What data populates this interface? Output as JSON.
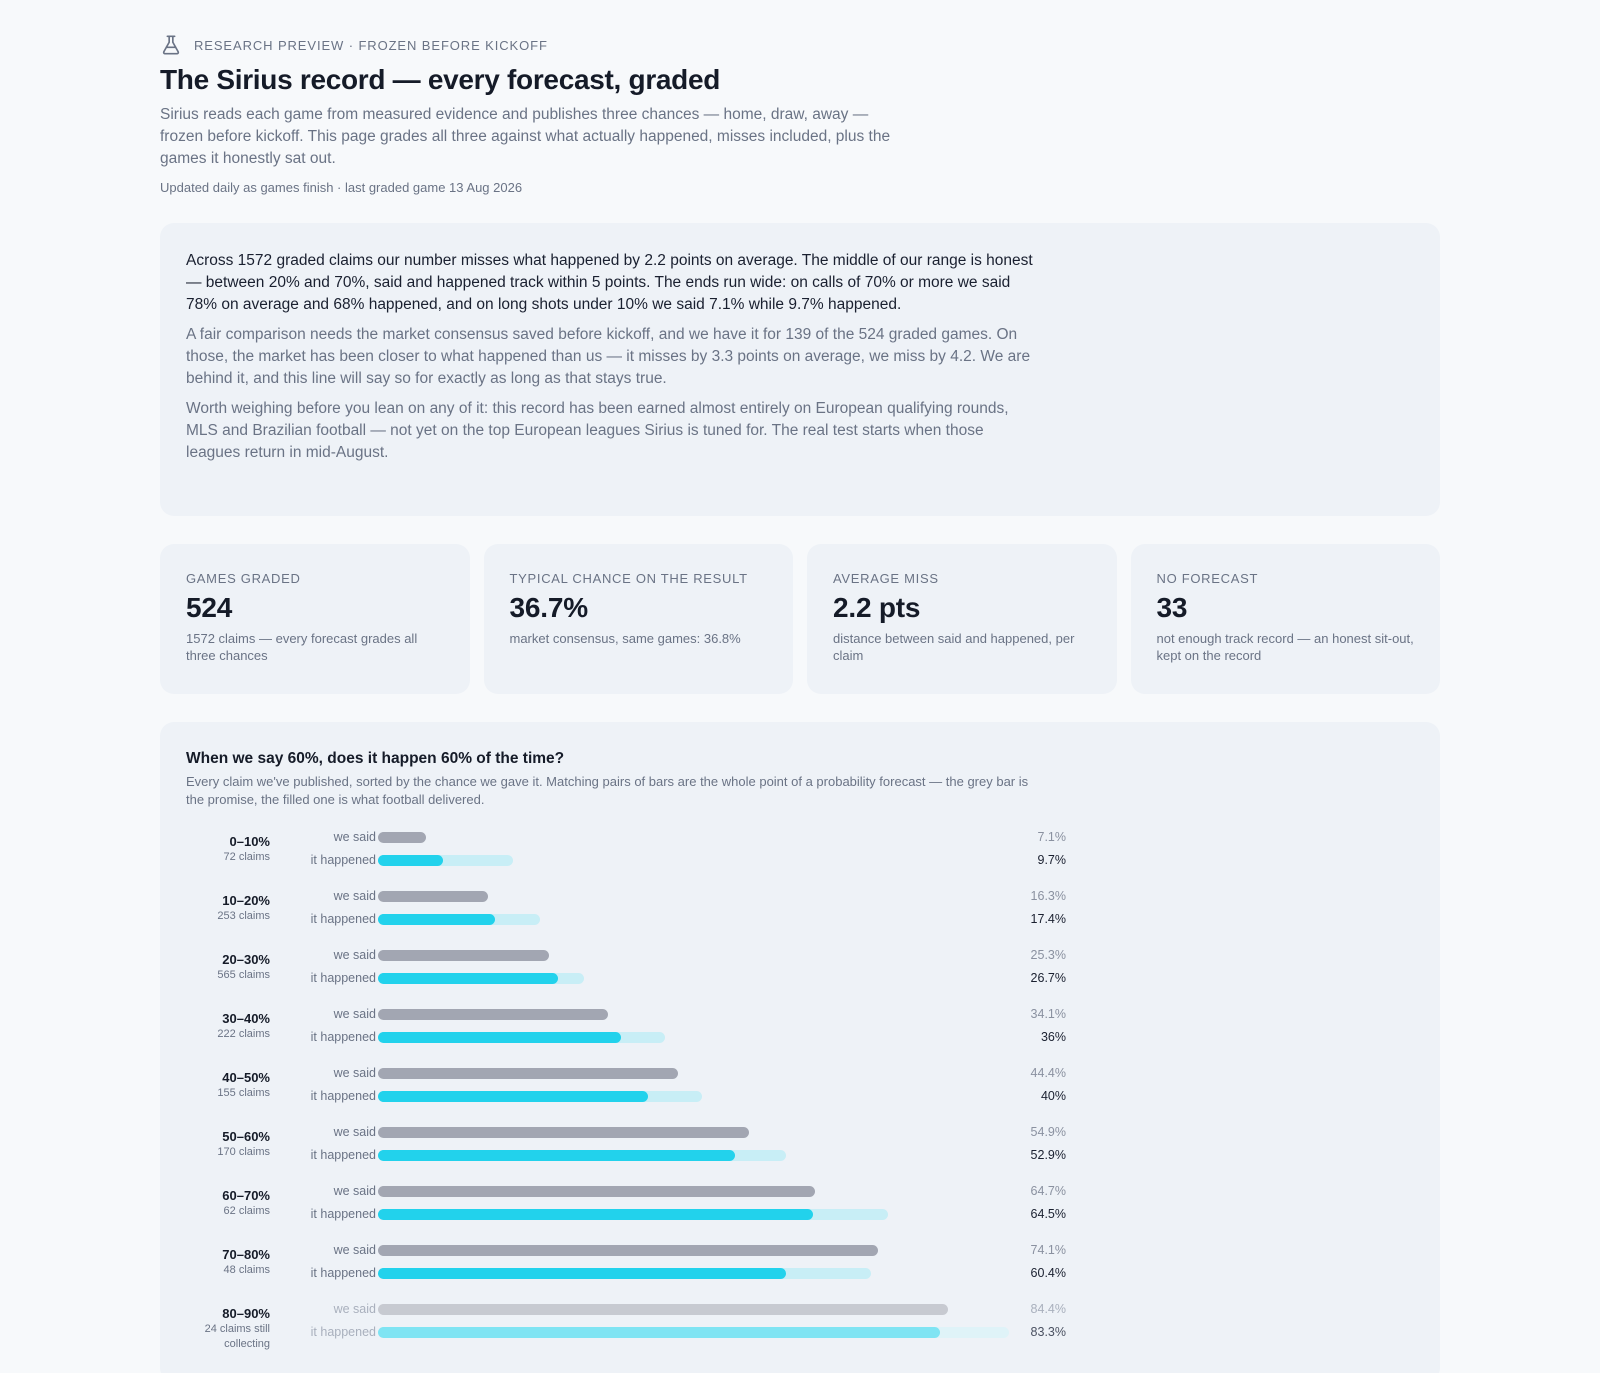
{
  "header": {
    "eyebrow": "RESEARCH PREVIEW · FROZEN BEFORE KICKOFF",
    "title": "The Sirius record — every forecast, graded",
    "lede": "Sirius reads each game from measured evidence and publishes three chances — home, draw, away — frozen before kickoff. This page grades all three against what actually happened, misses included, plus the games it honestly sat out.",
    "updated": "Updated daily as games finish · last graded game 13 Aug 2026"
  },
  "summary": {
    "p1": "Across 1572 graded claims our number misses what happened by 2.2 points on average. The middle of our range is honest — between 20% and 70%, said and happened track within 5 points. The ends run wide: on calls of 70% or more we said 78% on average and 68% happened, and on long shots under 10% we said 7.1% while 9.7% happened.",
    "p2": "A fair comparison needs the market consensus saved before kickoff, and we have it for 139 of the 524 graded games. On those, the market has been closer to what happened than us — it misses by 3.3 points on average, we miss by 4.2. We are behind it, and this line will say so for exactly as long as that stays true.",
    "p3": "Worth weighing before you lean on any of it: this record has been earned almost entirely on European qualifying rounds, MLS and Brazilian football — not yet on the top European leagues Sirius is tuned for. The real test starts when those leagues return in mid-August."
  },
  "cards": [
    {
      "label": "GAMES GRADED",
      "value": "524",
      "sub": "1572 claims — every forecast grades all three chances"
    },
    {
      "label": "TYPICAL CHANCE ON THE RESULT",
      "value": "36.7%",
      "sub": "market consensus, same games: 36.8%"
    },
    {
      "label": "AVERAGE MISS",
      "value": "2.2 pts",
      "sub": "distance between said and happened, per claim"
    },
    {
      "label": "NO FORECAST",
      "value": "33",
      "sub": "not enough track record — an honest sit-out, kept on the record"
    }
  ],
  "chart_data": {
    "type": "bar",
    "title": "When we say 60%, does it happen 60% of the time?",
    "subtitle": "Every claim we've published, sorted by the chance we gave it. Matching pairs of bars are the whole point of a probability forecast — the grey bar is the promise, the filled one is what football delivered.",
    "row_labels": {
      "said": "we said",
      "happened": "it happened"
    },
    "colors": {
      "said": "#a2a6b2",
      "happened": "#22d2ec",
      "uncertainty": "#c8eef6"
    },
    "max_value": 100,
    "bins": [
      {
        "range": "0–10%",
        "count": "72 claims",
        "said": 7.1,
        "happened": 9.7,
        "said_label": "7.1%",
        "happened_label": "9.7%",
        "upper": 20.0
      },
      {
        "range": "10–20%",
        "count": "253 claims",
        "said": 16.3,
        "happened": 17.4,
        "said_label": "16.3%",
        "happened_label": "17.4%",
        "upper": 24.0
      },
      {
        "range": "20–30%",
        "count": "565 claims",
        "said": 25.3,
        "happened": 26.7,
        "said_label": "25.3%",
        "happened_label": "26.7%",
        "upper": 30.5
      },
      {
        "range": "30–40%",
        "count": "222 claims",
        "said": 34.1,
        "happened": 36.0,
        "said_label": "34.1%",
        "happened_label": "36%",
        "upper": 42.5
      },
      {
        "range": "40–50%",
        "count": "155 claims",
        "said": 44.4,
        "happened": 40.0,
        "said_label": "44.4%",
        "happened_label": "40%",
        "upper": 48.0
      },
      {
        "range": "50–60%",
        "count": "170 claims",
        "said": 54.9,
        "happened": 52.9,
        "said_label": "54.9%",
        "happened_label": "52.9%",
        "upper": 60.5
      },
      {
        "range": "60–70%",
        "count": "62 claims",
        "said": 64.7,
        "happened": 64.5,
        "said_label": "64.7%",
        "happened_label": "64.5%",
        "upper": 75.5
      },
      {
        "range": "70–80%",
        "count": "48 claims",
        "said": 74.1,
        "happened": 60.4,
        "said_label": "74.1%",
        "happened_label": "60.4%",
        "upper": 73.0
      },
      {
        "range": "80–90%",
        "count": "24 claims still collecting",
        "said": 84.4,
        "happened": 83.3,
        "said_label": "84.4%",
        "happened_label": "83.3%",
        "upper": 93.5,
        "faded": true
      }
    ]
  }
}
